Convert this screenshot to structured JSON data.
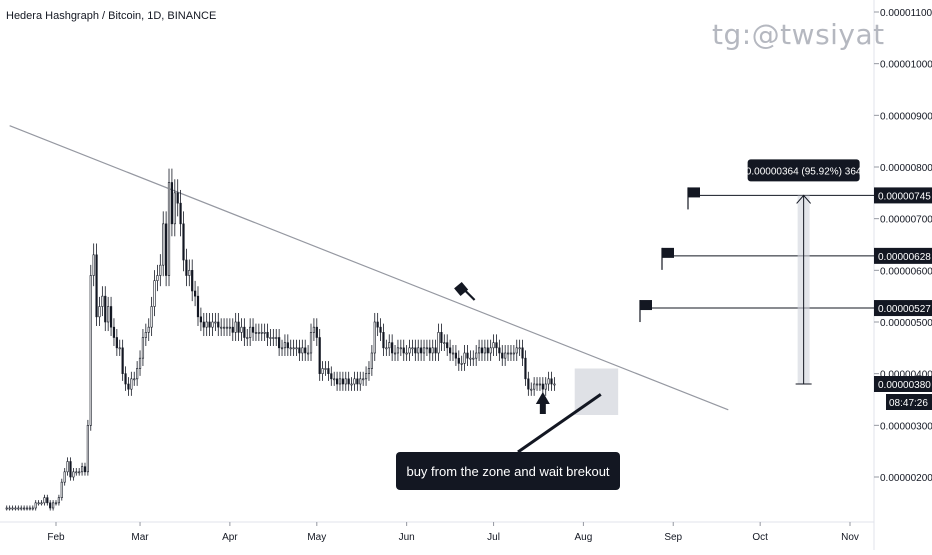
{
  "header": {
    "title": "Hedera Hashgraph / Bitcoin, 1D, BINANCE"
  },
  "watermark": "tg:@twsiyat",
  "chart_data": {
    "type": "candlestick",
    "title": "Hedera Hashgraph / Bitcoin, 1D, BINANCE",
    "ylim": [
      1.2e-06,
      1.13e-05
    ],
    "y_ticks": [
      "0.00000200",
      "0.00000300",
      "0.00000400",
      "0.00000500",
      "0.00000600",
      "0.00000700",
      "0.00000800",
      "0.00000900",
      "0.00001000",
      "0.00001100"
    ],
    "y_tick_values": [
      2e-06,
      3e-06,
      4e-06,
      5e-06,
      6e-06,
      7e-06,
      8e-06,
      9e-06,
      1e-05,
      1.1e-05
    ],
    "x_ticks": [
      "Feb",
      "Mar",
      "Apr",
      "May",
      "Jun",
      "Jul",
      "Aug",
      "Sep",
      "Oct",
      "Nov"
    ],
    "x_tick_dates": [
      "2020-02-01",
      "2020-03-01",
      "2020-04-01",
      "2020-05-01",
      "2020-06-01",
      "2020-07-01",
      "2020-08-01",
      "2020-09-01",
      "2020-10-01",
      "2020-11-01"
    ],
    "close_series": {
      "start_date": "2020-01-15",
      "values": [
        1.4e-06,
        1.4e-06,
        1.4e-06,
        1.4e-06,
        1.4e-06,
        1.4e-06,
        1.4e-06,
        1.4e-06,
        1.4e-06,
        1.4e-06,
        1.5e-06,
        1.5e-06,
        1.5e-06,
        1.6e-06,
        1.5e-06,
        1.4e-06,
        1.5e-06,
        1.5e-06,
        1.6e-06,
        1.9e-06,
        2.1e-06,
        2.3e-06,
        2e-06,
        2.1e-06,
        2.1e-06,
        2.1e-06,
        2.2e-06,
        2.1e-06,
        3e-06,
        5.9e-06,
        6.3e-06,
        5.1e-06,
        5.3e-06,
        5.5e-06,
        5e-06,
        5.3e-06,
        4.9e-06,
        4.7e-06,
        4.5e-06,
        4.5e-06,
        4e-06,
        3.8e-06,
        3.7e-06,
        3.9e-06,
        3.9e-06,
        4.1e-06,
        4.3e-06,
        4.7e-06,
        4.8e-06,
        4.9e-06,
        5.3e-06,
        5.8e-06,
        5.9e-06,
        6.1e-06,
        6.9e-06,
        5.9e-06,
        7.7e-06,
        6.9e-06,
        7.5e-06,
        7.3e-06,
        6.9e-06,
        6.2e-06,
        5.9e-06,
        6e-06,
        5.6e-06,
        5.5e-06,
        5.1e-06,
        5e-06,
        4.9e-06,
        5e-06,
        4.9e-06,
        5e-06,
        5e-06,
        4.9e-06,
        4.9e-06,
        4.9e-06,
        4.9e-06,
        4.9e-06,
        4.8e-06,
        5e-06,
        4.8e-06,
        4.9e-06,
        4.7e-06,
        4.7e-06,
        4.9e-06,
        4.8e-06,
        4.8e-06,
        4.8e-06,
        4.8e-06,
        4.8e-06,
        4.7e-06,
        4.7e-06,
        4.7e-06,
        4.7e-06,
        4.5e-06,
        4.5e-06,
        4.6e-06,
        4.5e-06,
        4.5e-06,
        4.5e-06,
        4.5e-06,
        4.4e-06,
        4.5e-06,
        4.4e-06,
        4.4e-06,
        4.8e-06,
        4.9e-06,
        4.7e-06,
        4e-06,
        4.1e-06,
        4.1e-06,
        4e-06,
        3.9e-06,
        3.9e-06,
        3.8e-06,
        3.9e-06,
        3.8e-06,
        3.9e-06,
        3.8e-06,
        3.8e-06,
        3.9e-06,
        3.8e-06,
        3.9e-06,
        3.9e-06,
        4e-06,
        4.1e-06,
        4.4e-06,
        5e-06,
        4.9e-06,
        4.8e-06,
        4.5e-06,
        4.5e-06,
        4.6e-06,
        4.4e-06,
        4.4e-06,
        4.5e-06,
        4.5e-06,
        4.4e-06,
        4.4e-06,
        4.5e-06,
        4.5e-06,
        4.4e-06,
        4.5e-06,
        4.4e-06,
        4.5e-06,
        4.5e-06,
        4.4e-06,
        4.5e-06,
        4.4e-06,
        4.8e-06,
        4.6e-06,
        4.6e-06,
        4.5e-06,
        4.4e-06,
        4.4e-06,
        4.3e-06,
        4.2e-06,
        4.2e-06,
        4.4e-06,
        4.3e-06,
        4.3e-06,
        4.3e-06,
        4.4e-06,
        4.5e-06,
        4.4e-06,
        4.5e-06,
        4.4e-06,
        4.5e-06,
        4.6e-06,
        4.5e-06,
        4.4e-06,
        4.3e-06,
        4.4e-06,
        4.4e-06,
        4.4e-06,
        4.4e-06,
        4.5e-06,
        4.5e-06,
        4.3e-06,
        3.9e-06,
        3.7e-06,
        3.7e-06,
        3.8e-06,
        3.8e-06,
        3.8e-06,
        3.7e-06,
        3.8e-06,
        3.9e-06,
        3.8e-06,
        3.8e-06
      ]
    },
    "trendline": {
      "from": {
        "date": "2020-01-16",
        "price": 8.8e-06
      },
      "to": {
        "date": "2020-09-20",
        "price": 3.3e-06
      }
    },
    "target_levels": [
      {
        "price": 7.45e-06,
        "label": "0.00000745"
      },
      {
        "price": 6.28e-06,
        "label": "0.00000628"
      },
      {
        "price": 5.27e-06,
        "label": "0.00000527"
      }
    ],
    "buy_zone": {
      "date_from": "2020-07-29",
      "date_to": "2020-08-13",
      "price_low": 3.2e-06,
      "price_high": 4.1e-06
    },
    "measure": {
      "date": "2020-10-16",
      "from_price": 3.8e-06,
      "to_price": 7.45e-06,
      "label": "0.00000364 (95.92%) 364"
    },
    "current_price": {
      "label": "0.00000380",
      "price": 3.8e-06,
      "countdown": "08:47:26"
    },
    "annotation": "buy from the zone and wait brekout",
    "colors": {
      "candle": "#131722",
      "accent": "#131722",
      "grid": "#e0e3eb",
      "trendline": "#9598a1",
      "zone": "#d1d4dc",
      "text": "#131722"
    }
  }
}
